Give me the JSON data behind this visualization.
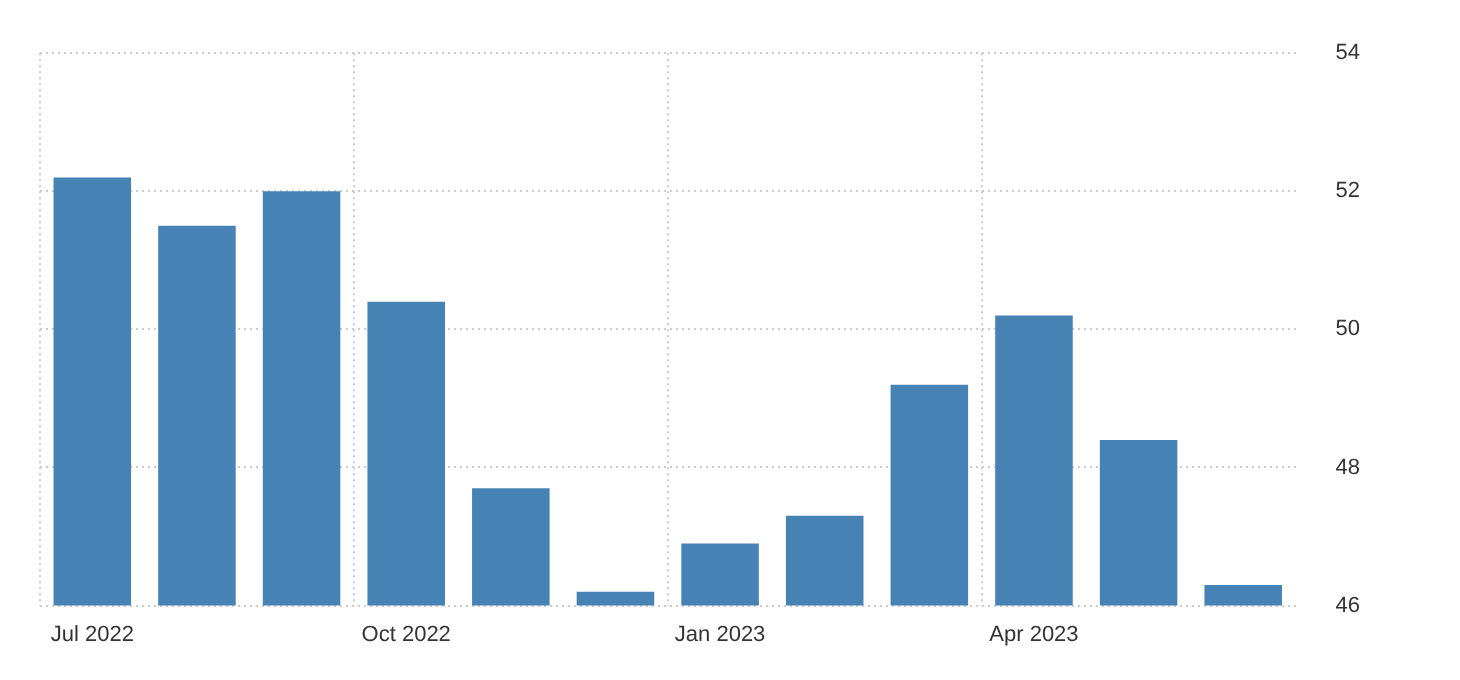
{
  "chart_data": {
    "type": "bar",
    "categories": [
      "Jul 2022",
      null,
      null,
      "Oct 2022",
      null,
      null,
      "Jan 2023",
      null,
      null,
      "Apr 2023",
      null,
      null
    ],
    "values": [
      52.2,
      51.5,
      52.0,
      50.4,
      47.7,
      46.2,
      46.9,
      47.3,
      49.2,
      50.2,
      48.4,
      46.3
    ],
    "color": "#4682b4",
    "ylim": [
      46,
      54
    ],
    "yticks": [
      46,
      48,
      50,
      52,
      54
    ],
    "grid": true,
    "legend": false
  }
}
